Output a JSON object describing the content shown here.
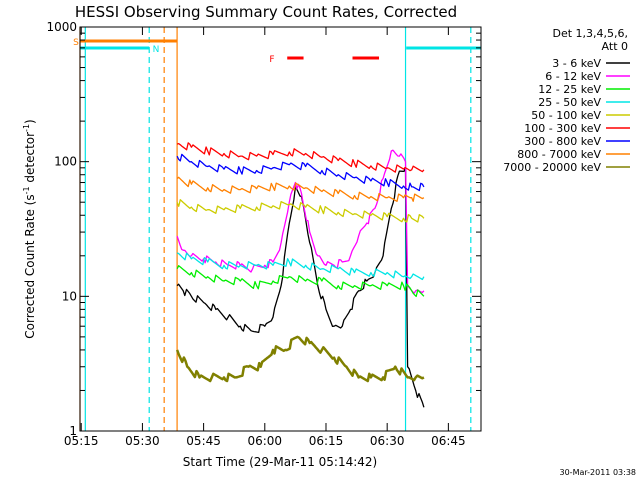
{
  "chart_data": {
    "type": "line",
    "title": "HESSI Observing Summary Count Rates, Corrected",
    "xlabel": "Start Time (29-Mar-11 05:14:42)",
    "ylabel": "Corrected Count Rate (s",
    "ylabel_exp": "-1",
    "ylabel_mid": " detector",
    "ylabel_tail": ")",
    "y_scale": "log",
    "ylim": [
      1,
      1000
    ],
    "xlim": [
      "05:14:42",
      "06:53:00"
    ],
    "x_ticks": [
      "05:15",
      "05:30",
      "05:45",
      "06:00",
      "06:15",
      "06:30",
      "06:45"
    ],
    "y_ticks": [
      "1",
      "10",
      "100",
      "1000"
    ],
    "grid": false,
    "legend_position": "top-right",
    "legend_header": [
      "Det 1,3,4,5,6,",
      "Att 0"
    ],
    "footer_timestamp": "30-Mar-2011 03:38",
    "flags": {
      "S": {
        "label": "S",
        "color": "#ff7f00",
        "segments": [
          [
            "05:14:42",
            "05:38:30"
          ]
        ]
      },
      "N": {
        "label": "N",
        "color": "#00e5e5",
        "segments": [
          [
            "05:14:42",
            "05:31:40"
          ],
          [
            "06:34:40",
            "06:53:00"
          ]
        ]
      },
      "F": {
        "label": "F",
        "color": "#ff0000",
        "segments": [
          [
            "06:05:30",
            "06:09:30"
          ],
          [
            "06:21:30",
            "06:28:00"
          ]
        ]
      }
    },
    "vlines": [
      {
        "time": "05:14:42",
        "color": "#ff7f00",
        "dash": false
      },
      {
        "time": "05:16:00",
        "color": "#00e5e5",
        "dash": false
      },
      {
        "time": "05:31:40",
        "color": "#00e5e5",
        "dash": true
      },
      {
        "time": "05:35:20",
        "color": "#ff7f00",
        "dash": true
      },
      {
        "time": "05:38:30",
        "color": "#ff7f00",
        "dash": false
      },
      {
        "time": "06:34:30",
        "color": "#00e5e5",
        "dash": false
      },
      {
        "time": "06:50:30",
        "color": "#00e5e5",
        "dash": true
      }
    ],
    "series": [
      {
        "name": "3 - 6 keV",
        "color": "#000000",
        "x": [
          "05:38:30",
          "05:40",
          "05:42",
          "05:45",
          "05:48",
          "05:51",
          "05:54",
          "05:57",
          "06:00",
          "06:02",
          "06:04",
          "06:06",
          "06:07:30",
          "06:09",
          "06:11",
          "06:13",
          "06:15",
          "06:17",
          "06:19",
          "06:21",
          "06:23",
          "06:25",
          "06:27",
          "06:29",
          "06:31",
          "06:33",
          "06:34:30",
          "06:35",
          "06:37",
          "06:39"
        ],
        "y": [
          12,
          11,
          10,
          9,
          8,
          7,
          6,
          5.5,
          6,
          7,
          12,
          35,
          65,
          55,
          25,
          12,
          8,
          6,
          6,
          8,
          11,
          13,
          15,
          20,
          45,
          85,
          90,
          3,
          2,
          1.5
        ]
      },
      {
        "name": "6 - 12 keV",
        "color": "#ff00ff",
        "x": [
          "05:38:30",
          "05:40",
          "05:42",
          "05:45",
          "05:48",
          "05:51",
          "05:54",
          "05:57",
          "06:00",
          "06:02",
          "06:04",
          "06:06",
          "06:07:30",
          "06:09",
          "06:11",
          "06:13",
          "06:15",
          "06:17",
          "06:19",
          "06:21",
          "06:23",
          "06:25",
          "06:27",
          "06:29",
          "06:31",
          "06:33",
          "06:34:30",
          "06:35",
          "06:37",
          "06:39"
        ],
        "y": [
          28,
          22,
          20,
          19,
          18,
          17,
          17,
          16,
          17,
          18,
          25,
          50,
          70,
          58,
          30,
          20,
          17,
          17,
          18,
          20,
          28,
          35,
          45,
          75,
          120,
          110,
          100,
          12,
          11,
          11
        ]
      },
      {
        "name": "12 - 25 keV",
        "color": "#00ee00",
        "x": [
          "05:38:30",
          "05:42",
          "05:46",
          "05:50",
          "05:54",
          "05:58",
          "06:02",
          "06:06",
          "06:10",
          "06:14",
          "06:18",
          "06:22",
          "06:26",
          "06:30",
          "06:34",
          "06:36",
          "06:39"
        ],
        "y": [
          16,
          15,
          14,
          13,
          13,
          12,
          13,
          14,
          13,
          13,
          12,
          12,
          12,
          12,
          12,
          11,
          10
        ]
      },
      {
        "name": "25 - 50 keV",
        "color": "#00e5e5",
        "x": [
          "05:38:30",
          "05:42",
          "05:46",
          "05:50",
          "05:54",
          "05:58",
          "06:02",
          "06:06",
          "06:10",
          "06:14",
          "06:18",
          "06:22",
          "06:26",
          "06:30",
          "06:34",
          "06:36",
          "06:39"
        ],
        "y": [
          21,
          19,
          18,
          17,
          17,
          17,
          17,
          18,
          17,
          16,
          16,
          15,
          15,
          15,
          14,
          14,
          14
        ]
      },
      {
        "name": "50 - 100 keV",
        "color": "#cccc00",
        "x": [
          "05:38:30",
          "05:42",
          "05:46",
          "05:50",
          "05:54",
          "05:58",
          "06:02",
          "06:06",
          "06:10",
          "06:14",
          "06:18",
          "06:22",
          "06:26",
          "06:30",
          "06:34",
          "06:36",
          "06:39"
        ],
        "y": [
          50,
          46,
          44,
          44,
          45,
          46,
          47,
          48,
          46,
          44,
          42,
          41,
          40,
          39,
          38,
          38,
          38
        ]
      },
      {
        "name": "100 - 300 keV",
        "color": "#ff0000",
        "x": [
          "05:38:30",
          "05:42",
          "05:46",
          "05:50",
          "05:54",
          "05:58",
          "06:02",
          "06:06",
          "06:10",
          "06:14",
          "06:18",
          "06:22",
          "06:26",
          "06:30",
          "06:34",
          "06:36",
          "06:39"
        ],
        "y": [
          135,
          128,
          120,
          115,
          110,
          110,
          113,
          118,
          115,
          108,
          102,
          97,
          93,
          90,
          88,
          87,
          87
        ]
      },
      {
        "name": "300 - 800 keV",
        "color": "#0000ff",
        "x": [
          "05:38:30",
          "05:42",
          "05:46",
          "05:50",
          "05:54",
          "05:58",
          "06:02",
          "06:06",
          "06:10",
          "06:14",
          "06:18",
          "06:22",
          "06:26",
          "06:30",
          "06:34",
          "06:36",
          "06:39"
        ],
        "y": [
          110,
          100,
          92,
          88,
          86,
          86,
          90,
          95,
          92,
          86,
          80,
          76,
          72,
          70,
          66,
          65,
          65
        ]
      },
      {
        "name": "800 - 7000 keV",
        "color": "#ff8000",
        "x": [
          "05:38:30",
          "05:42",
          "05:46",
          "05:50",
          "05:54",
          "05:58",
          "06:02",
          "06:06",
          "06:10",
          "06:14",
          "06:18",
          "06:22",
          "06:26",
          "06:30",
          "06:34",
          "06:36",
          "06:39"
        ],
        "y": [
          75,
          68,
          64,
          62,
          62,
          63,
          65,
          66,
          64,
          60,
          58,
          56,
          55,
          54,
          54,
          54,
          54
        ]
      },
      {
        "name": "7000 - 20000 keV",
        "color": "#808000",
        "x": [
          "05:38:30",
          "05:41",
          "05:44",
          "05:47",
          "05:50",
          "05:53",
          "05:56",
          "05:59",
          "06:02",
          "06:05",
          "06:08",
          "06:11",
          "06:14",
          "06:17",
          "06:20",
          "06:23",
          "06:26",
          "06:29",
          "06:32",
          "06:35",
          "06:37",
          "06:39"
        ],
        "y": [
          4,
          3,
          2.5,
          2.5,
          2.5,
          2.5,
          3,
          3,
          4,
          4,
          5,
          4.5,
          4,
          3.5,
          3,
          2.5,
          2.5,
          2.5,
          3,
          2.5,
          2.5,
          2.5
        ]
      }
    ]
  }
}
